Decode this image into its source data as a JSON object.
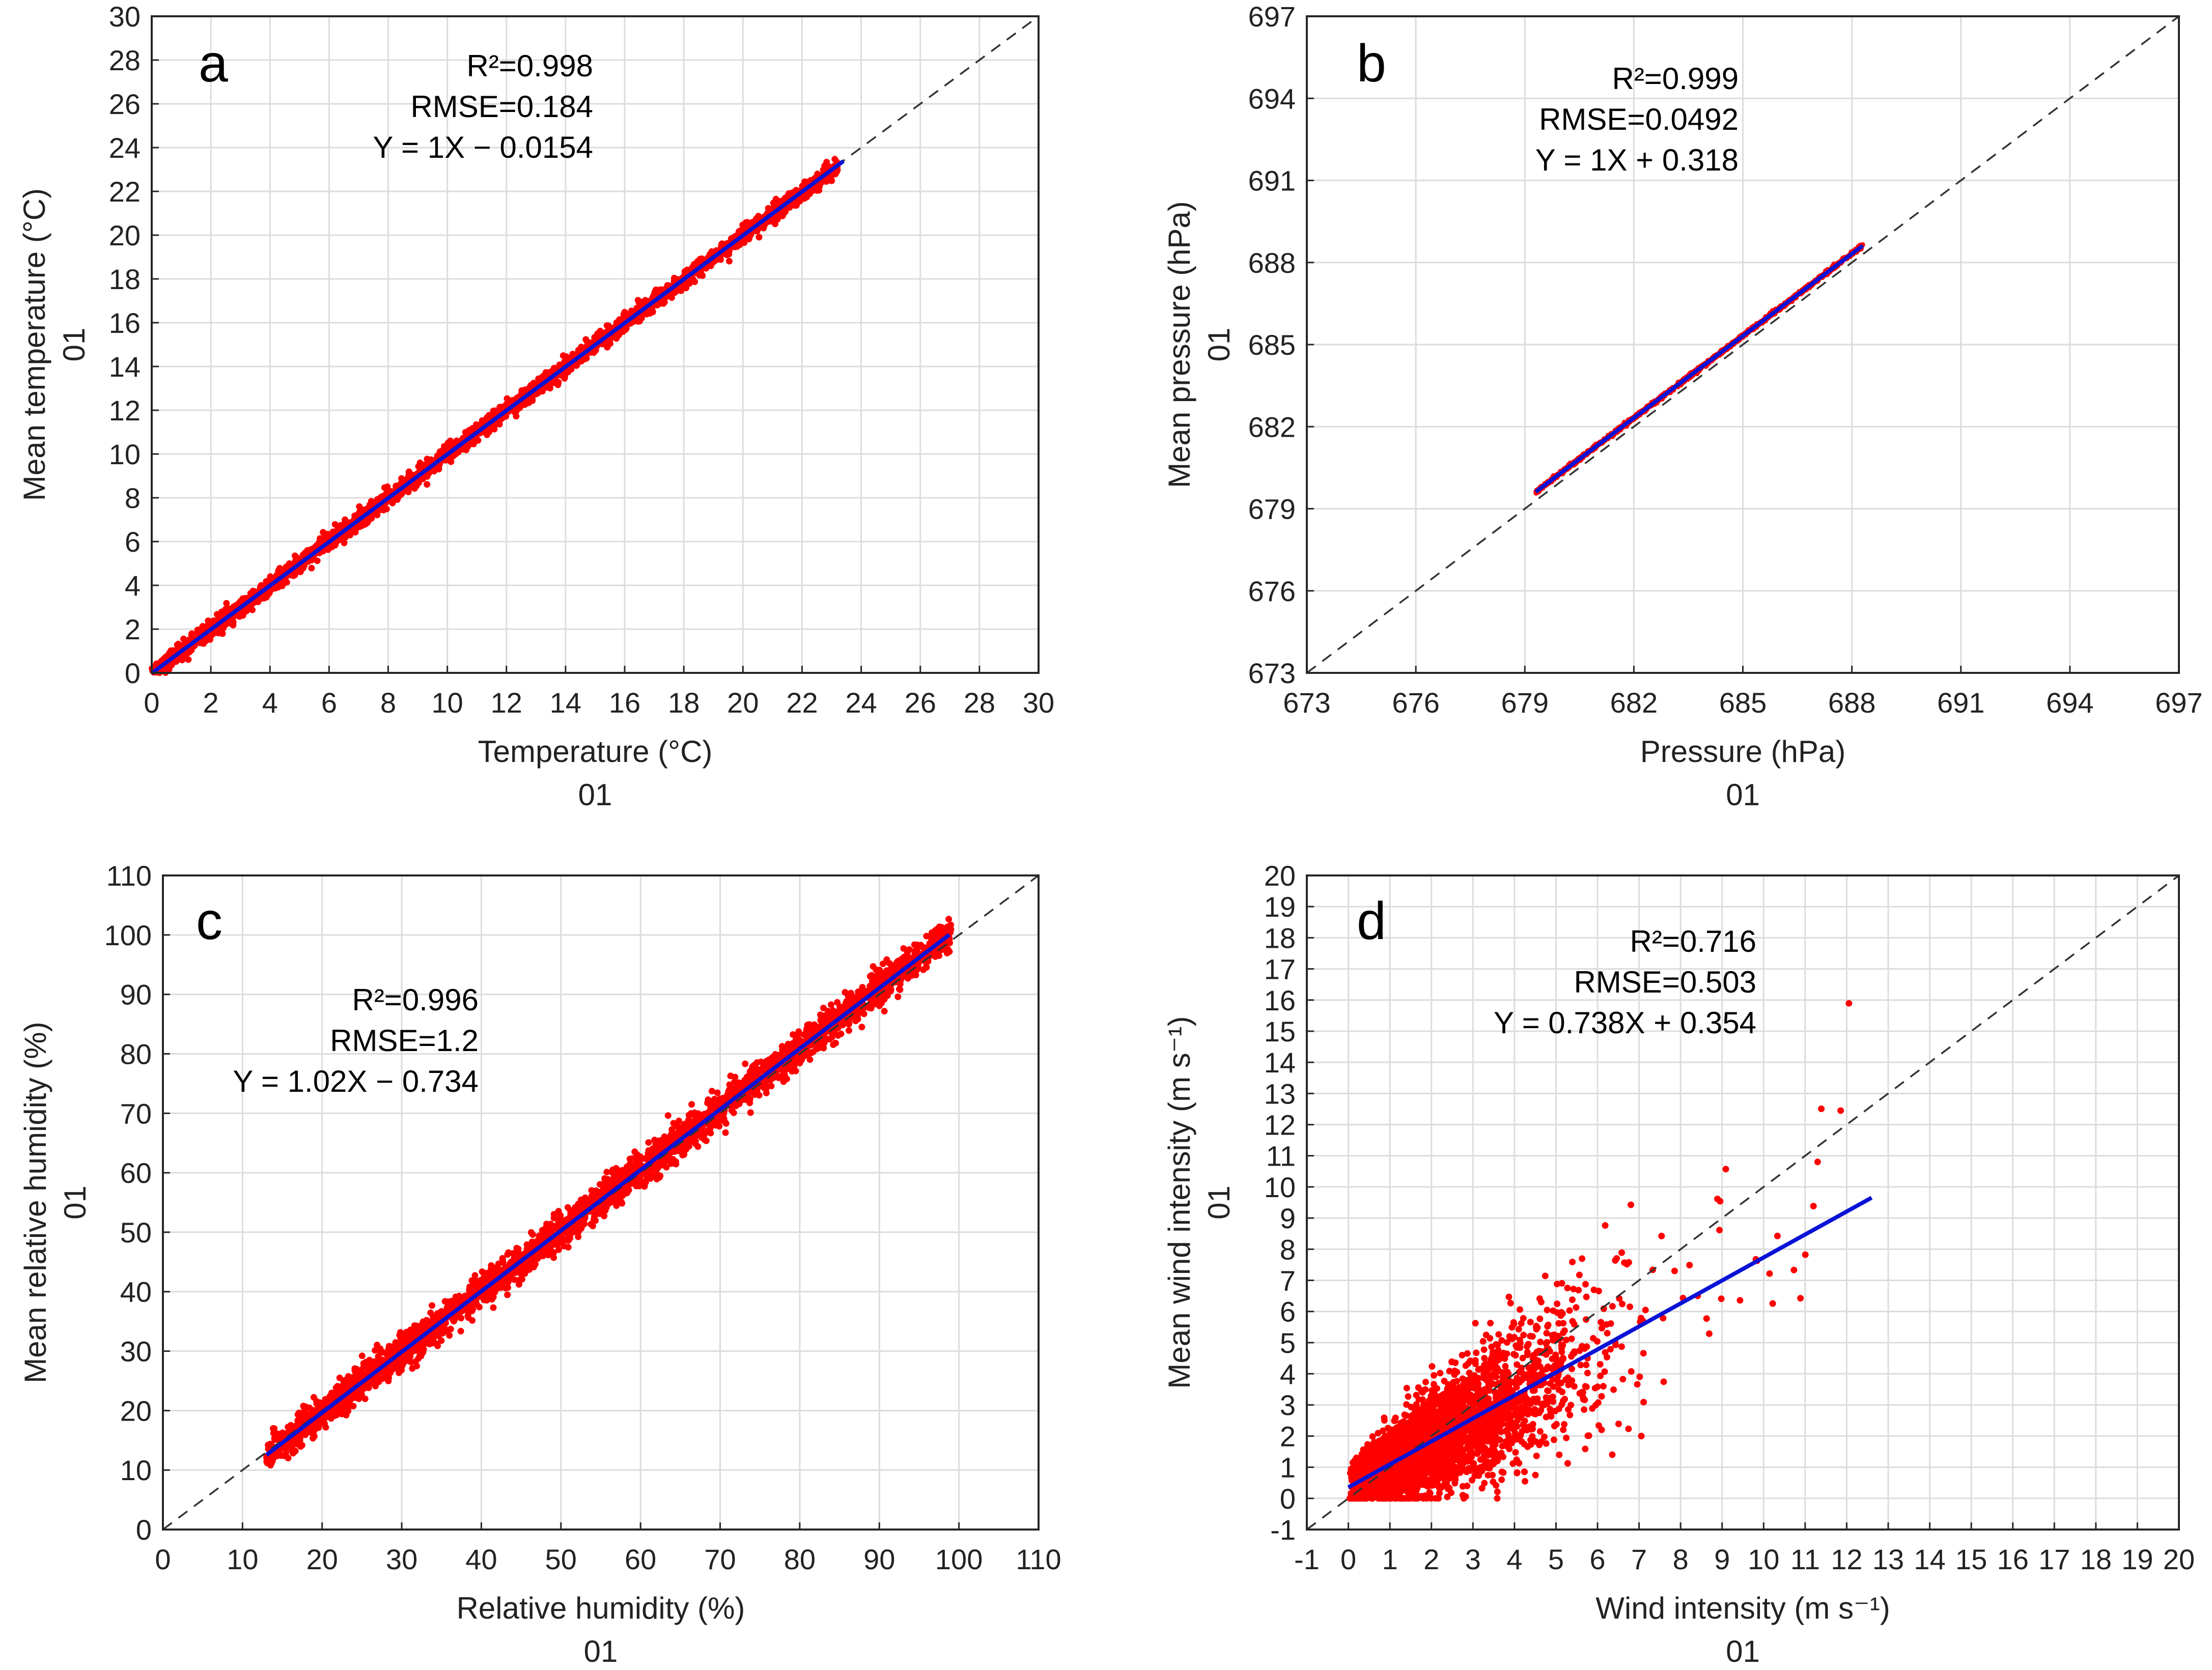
{
  "colors": {
    "points": "#ff0000",
    "fit": "#0a12d6",
    "identity": "#333333",
    "grid": "#dcdcdc"
  },
  "chart_data": [
    {
      "type": "scatter",
      "panel": "a",
      "xlabel": "Temperature (°C)",
      "ylabel": "Mean temperature (°C)",
      "sublabel_x": "01",
      "sublabel_y": "01",
      "xlim": [
        0,
        30
      ],
      "ylim": [
        0,
        30
      ],
      "xticks": [
        0,
        2,
        4,
        6,
        8,
        10,
        12,
        14,
        16,
        18,
        20,
        22,
        24,
        26,
        28,
        30
      ],
      "yticks": [
        0,
        2,
        4,
        6,
        8,
        10,
        12,
        14,
        16,
        18,
        20,
        22,
        24,
        26,
        28,
        30
      ],
      "stats": {
        "r2": "R²=0.998",
        "rmse": "RMSE=0.184",
        "equation": "Y = 1X − 0.0154"
      },
      "stats_anchor": "top-center",
      "fit": {
        "slope": 1,
        "intercept": -0.0154,
        "x_range": [
          0,
          23.4
        ]
      },
      "scatter": {
        "x_range": [
          0,
          23.2
        ],
        "spread": 0.45,
        "n": 2600
      }
    },
    {
      "type": "scatter",
      "panel": "b",
      "xlabel": "Pressure (hPa)",
      "ylabel": "Mean pressure (hPa)",
      "sublabel_x": "01",
      "sublabel_y": "01",
      "xlim": [
        673,
        697
      ],
      "ylim": [
        673,
        697
      ],
      "xticks": [
        673,
        676,
        679,
        682,
        685,
        688,
        691,
        694,
        697
      ],
      "yticks": [
        673,
        676,
        679,
        682,
        685,
        688,
        691,
        694,
        697
      ],
      "stats": {
        "r2": "R²=0.999",
        "rmse": "RMSE=0.0492",
        "equation": "Y = 1X + 0.318"
      },
      "stats_anchor": "top-center",
      "fit": {
        "slope": 1,
        "intercept": 0.318,
        "x_range": [
          679.3,
          688.3
        ]
      },
      "scatter": {
        "x_range": [
          679.3,
          688.3
        ],
        "spread": 0.08,
        "n": 1400
      }
    },
    {
      "type": "scatter",
      "panel": "c",
      "xlabel": "Relative humidity (%)",
      "ylabel": "Mean relative humidity (%)",
      "sublabel_x": "01",
      "sublabel_y": "01",
      "xlim": [
        0,
        110
      ],
      "ylim": [
        0,
        110
      ],
      "xticks": [
        0,
        10,
        20,
        30,
        40,
        50,
        60,
        70,
        80,
        90,
        100,
        110
      ],
      "yticks": [
        0,
        10,
        20,
        30,
        40,
        50,
        60,
        70,
        80,
        90,
        100,
        110
      ],
      "stats": {
        "r2": "R²=0.996",
        "rmse": "RMSE=1.2",
        "equation": "Y = 1.02X − 0.734"
      },
      "stats_anchor": "top-left",
      "fit": {
        "slope": 1.02,
        "intercept": -0.734,
        "x_range": [
          13,
          98.8
        ]
      },
      "scatter": {
        "x_range": [
          13,
          99
        ],
        "spread": 3.2,
        "n": 3000
      }
    },
    {
      "type": "scatter",
      "panel": "d",
      "xlabel": "Wind intensity (m s⁻¹)",
      "ylabel": "Mean wind intensity (m s⁻¹)",
      "sublabel_x": "01",
      "sublabel_y": "01",
      "xlim": [
        -1,
        20
      ],
      "ylim": [
        -1,
        20
      ],
      "xticks": [
        -1,
        0,
        1,
        2,
        3,
        4,
        5,
        6,
        7,
        8,
        9,
        10,
        11,
        12,
        13,
        14,
        15,
        16,
        17,
        18,
        19,
        20
      ],
      "yticks": [
        -1,
        0,
        1,
        2,
        3,
        4,
        5,
        6,
        7,
        8,
        9,
        10,
        11,
        12,
        13,
        14,
        15,
        16,
        17,
        18,
        19,
        20
      ],
      "stats": {
        "r2": "R²=0.716",
        "rmse": "RMSE=0.503",
        "equation": "Y = 0.738X + 0.354"
      },
      "stats_anchor": "top-center",
      "fit": {
        "slope": 0.738,
        "intercept": 0.354,
        "x_range": [
          0,
          12.6
        ]
      },
      "scatter": {
        "x_range": [
          0,
          12.6
        ],
        "spread": 1.1,
        "n": 3400
      }
    }
  ]
}
